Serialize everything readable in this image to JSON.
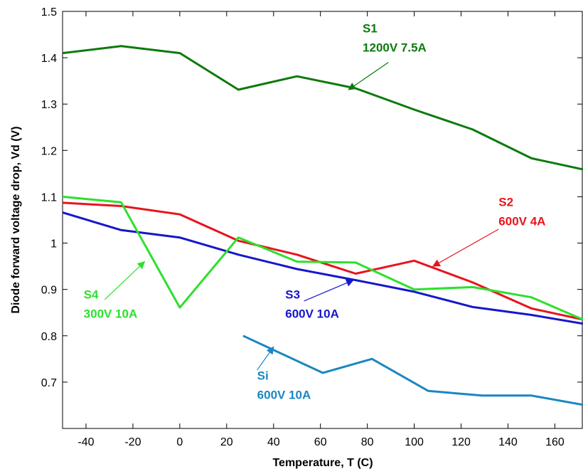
{
  "chart_data": {
    "type": "line",
    "title": "",
    "xlabel": "Temperature, T (C)",
    "ylabel": "Diode forward voltage drop, Vd (V)",
    "xlim": [
      -50,
      172
    ],
    "ylim": [
      0.6,
      1.5
    ],
    "xticks": [
      -40,
      -20,
      0,
      20,
      40,
      60,
      80,
      100,
      120,
      140,
      160
    ],
    "yticks": [
      0.6,
      0.7,
      0.8,
      0.9,
      1.0,
      1.1,
      1.2,
      1.3,
      1.4,
      1.5
    ],
    "ytick_labels": [
      "",
      "0.7",
      "0.8",
      "0.9",
      "1",
      "1.1",
      "1.2",
      "1.3",
      "1.4",
      "1.5"
    ],
    "grid": false,
    "series": [
      {
        "color": "#0d7a0d",
        "x": [
          -50,
          -25,
          0,
          25,
          50,
          75,
          100,
          125,
          150,
          172
        ],
        "y": [
          1.41,
          1.425,
          1.41,
          1.331,
          1.36,
          1.334,
          1.288,
          1.245,
          1.183,
          1.159
        ]
      },
      {
        "color": "#e8141c",
        "x": [
          -50,
          -25,
          0,
          25,
          50,
          75,
          100,
          125,
          150,
          172
        ],
        "y": [
          1.087,
          1.08,
          1.062,
          1.005,
          0.975,
          0.934,
          0.962,
          0.915,
          0.859,
          0.835
        ]
      },
      {
        "color": "#1616cc",
        "x": [
          -50,
          -25,
          0,
          25,
          50,
          75,
          100,
          125,
          150,
          172
        ],
        "y": [
          1.066,
          1.028,
          1.012,
          0.975,
          0.944,
          0.92,
          0.895,
          0.862,
          0.845,
          0.826
        ]
      },
      {
        "color": "#2de02d",
        "x": [
          -50,
          -25,
          0,
          25,
          50,
          75,
          100,
          125,
          150,
          172
        ],
        "y": [
          1.1,
          1.088,
          0.861,
          1.012,
          0.96,
          0.958,
          0.9,
          0.905,
          0.883,
          0.835
        ]
      },
      {
        "color": "#1a87c2",
        "x": [
          27,
          61,
          82,
          106,
          129,
          150,
          172
        ],
        "y": [
          0.8,
          0.72,
          0.75,
          0.681,
          0.671,
          0.671,
          0.651
        ]
      }
    ],
    "annotations": [
      {
        "line1": "S1",
        "line2": "1200V 7.5A",
        "color": "#0d7a0d",
        "tx": 78,
        "ty": 1.455,
        "ax1": 89,
        "ay1": 1.39,
        "ax2": 72,
        "ay2": 1.331
      },
      {
        "line1": "S2",
        "line2": "600V 4A",
        "color": "#e8141c",
        "tx": 136,
        "ty": 1.08,
        "ax1": 136,
        "ay1": 1.03,
        "ax2": 108,
        "ay2": 0.95
      },
      {
        "line1": "S3",
        "line2": "600V 10A",
        "color": "#1616cc",
        "tx": 45,
        "ty": 0.88,
        "ax1": 53,
        "ay1": 0.875,
        "ax2": 74,
        "ay2": 0.92
      },
      {
        "line1": "S4",
        "line2": "300V 10A",
        "color": "#2de02d",
        "tx": -41,
        "ty": 0.88,
        "ax1": -32,
        "ay1": 0.878,
        "ax2": -15,
        "ay2": 0.96
      },
      {
        "line1": "Si",
        "line2": "600V 10A",
        "color": "#1a87c2",
        "tx": 33,
        "ty": 0.705,
        "ax1": 33,
        "ay1": 0.726,
        "ax2": 40,
        "ay2": 0.776
      }
    ]
  }
}
